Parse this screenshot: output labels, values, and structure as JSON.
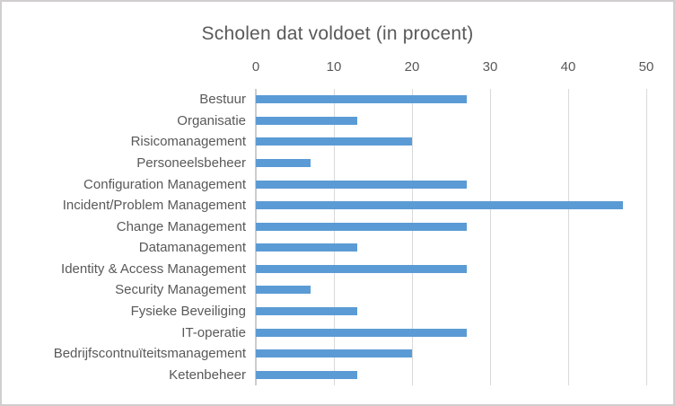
{
  "chart_data": {
    "type": "bar",
    "orientation": "horizontal",
    "title": "Scholen dat voldoet (in procent)",
    "categories": [
      "Bestuur",
      "Organisatie",
      "Risicomanagement",
      "Personeelsbeheer",
      "Configuration Management",
      "Incident/Problem Management",
      "Change Management",
      "Datamanagement",
      "Identity & Access Management",
      "Security Management",
      "Fysieke Beveiliging",
      "IT-operatie",
      "Bedrijfscontnuïteitsmanagement",
      "Ketenbeheer"
    ],
    "values": [
      27,
      13,
      20,
      7,
      27,
      47,
      27,
      13,
      27,
      7,
      13,
      27,
      20,
      13
    ],
    "x_ticks": [
      0,
      10,
      20,
      30,
      40,
      50
    ],
    "xlim": [
      0,
      50
    ],
    "xlabel": "",
    "ylabel": "",
    "axis_position": "top",
    "grid": "vertical",
    "legend": "none",
    "colors": {
      "bar": "#5B9BD5",
      "gridline": "#D9D9D9",
      "axis_line": "#CCCCCC",
      "text": "#595959",
      "frame_border": "#D0CECE",
      "background": "#FFFFFF"
    }
  }
}
